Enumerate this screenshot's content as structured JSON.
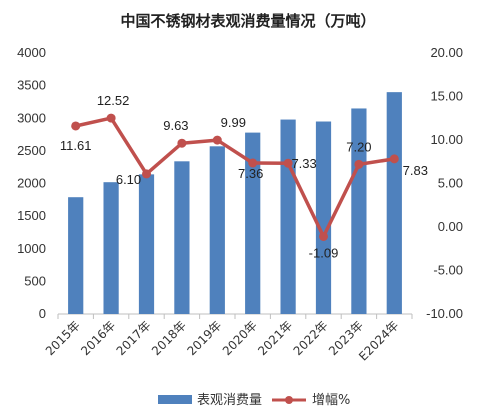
{
  "chart_data": {
    "type": "bar",
    "title": "中国不锈钢材表观消费量情况（万吨）",
    "categories": [
      "2015年",
      "2016年",
      "2017年",
      "2018年",
      "2019年",
      "2020年",
      "2021年",
      "2022年",
      "2023年",
      "E2024年"
    ],
    "series": [
      {
        "name": "表观消费量",
        "type": "bar",
        "axis": "left",
        "color": "#4f81bd",
        "values": [
          1790,
          2020,
          2140,
          2340,
          2570,
          2780,
          2980,
          2950,
          3150,
          3400
        ]
      },
      {
        "name": "增幅%",
        "type": "line",
        "axis": "right",
        "color": "#c0504d",
        "values": [
          11.61,
          12.52,
          6.1,
          9.63,
          9.99,
          7.36,
          7.33,
          -1.09,
          7.2,
          7.83
        ]
      }
    ],
    "data_labels": [
      "11.61",
      "12.52",
      "6.10",
      "9.63",
      "9.99",
      "7.36",
      "7.33",
      "-1.09",
      "7.20",
      "7.83"
    ],
    "y_left": {
      "ylim": [
        0,
        4000
      ],
      "ticks": [
        "0",
        "500",
        "1000",
        "1500",
        "2000",
        "2500",
        "3000",
        "3500",
        "4000"
      ]
    },
    "y_right": {
      "ylim": [
        -10,
        20
      ],
      "ticks": [
        "-10.00",
        "-5.00",
        "0.00",
        "5.00",
        "10.00",
        "15.00",
        "20.00"
      ]
    },
    "grid": false,
    "legend": "bottom"
  }
}
